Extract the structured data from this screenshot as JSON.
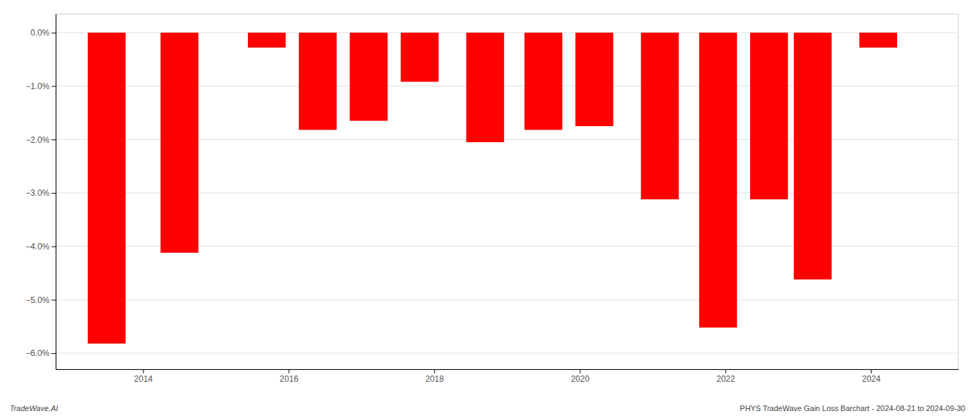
{
  "chart_data": {
    "type": "bar",
    "x": [
      2013.5,
      2014.5,
      2015.7,
      2016.4,
      2017.1,
      2017.8,
      2018.7,
      2019.5,
      2020.2,
      2021.1,
      2021.9,
      2022.6,
      2023.2,
      2024.1
    ],
    "values": [
      -5.82,
      -4.12,
      -0.28,
      -1.82,
      -1.65,
      -0.92,
      -2.05,
      -1.82,
      -1.75,
      -3.12,
      -5.52,
      -3.12,
      -4.62,
      -0.28
    ],
    "color": "#ff0000",
    "xlim": [
      2012.8,
      2025.2
    ],
    "xticks": [
      2014,
      2016,
      2018,
      2020,
      2022,
      2024
    ],
    "ylim": [
      -6.3,
      0.35
    ],
    "yticks": [
      {
        "value": 0.0,
        "label": "0.0%"
      },
      {
        "value": -1.0,
        "label": "−1.0%"
      },
      {
        "value": -2.0,
        "label": "−2.0%"
      },
      {
        "value": -3.0,
        "label": "−3.0%"
      },
      {
        "value": -4.0,
        "label": "−4.0%"
      },
      {
        "value": -5.0,
        "label": "−5.0%"
      },
      {
        "value": -6.0,
        "label": "−6.0%"
      }
    ],
    "grid": true,
    "annotations": [
      "TradeWave.AI",
      "PHYS TradeWave Gain Loss Barchart - 2024-08-21 to 2024-09-30"
    ]
  }
}
